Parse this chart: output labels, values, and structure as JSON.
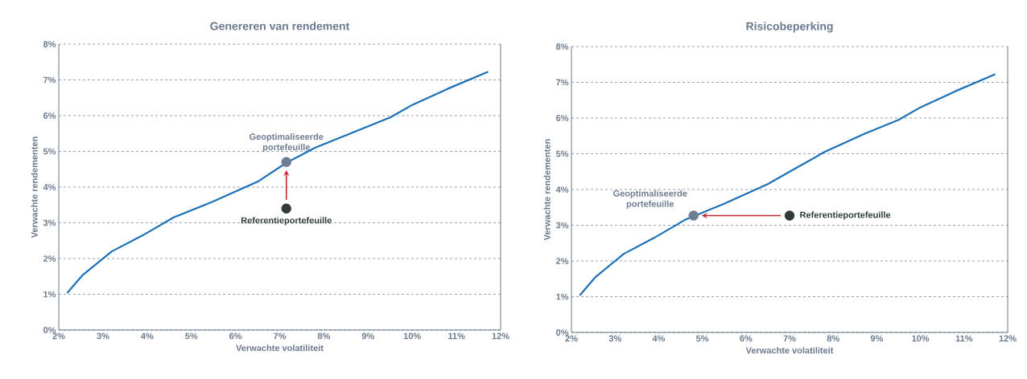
{
  "chart_data": [
    {
      "type": "line",
      "title": "Genereren van rendement",
      "xlabel": "Verwachte volatiliteit",
      "ylabel": "Verwachte rendementen",
      "xlim": [
        2,
        12
      ],
      "ylim": [
        0,
        8
      ],
      "grid": "y",
      "xticks": [
        {
          "value": 2,
          "label": "2%"
        },
        {
          "value": 3,
          "label": "3%"
        },
        {
          "value": 4,
          "label": "4%"
        },
        {
          "value": 5,
          "label": "5%"
        },
        {
          "value": 6,
          "label": "6%"
        },
        {
          "value": 7,
          "label": "7%"
        },
        {
          "value": 8,
          "label": "8%"
        },
        {
          "value": 9,
          "label": "9%"
        },
        {
          "value": 10,
          "label": "10%"
        },
        {
          "value": 11,
          "label": "11%"
        },
        {
          "value": 12,
          "label": "12%"
        }
      ],
      "yticks": [
        {
          "value": 0,
          "label": "0%"
        },
        {
          "value": 1,
          "label": "1%"
        },
        {
          "value": 2,
          "label": "2%"
        },
        {
          "value": 3,
          "label": "3%"
        },
        {
          "value": 4,
          "label": "4%"
        },
        {
          "value": 5,
          "label": "5%"
        },
        {
          "value": 6,
          "label": "6%"
        },
        {
          "value": 7,
          "label": "7%"
        },
        {
          "value": 8,
          "label": "8%"
        }
      ],
      "series": [
        {
          "type": "line",
          "marker": "none",
          "color": "#1b70b8",
          "x": [
            2.2,
            2.55,
            3.2,
            3.9,
            4.6,
            5.5,
            6.5,
            7.15,
            7.8,
            8.7,
            9.5,
            10.0,
            10.8,
            11.7
          ],
          "values": [
            1.05,
            1.55,
            2.2,
            2.65,
            3.15,
            3.6,
            4.15,
            4.68,
            5.1,
            5.55,
            5.95,
            6.3,
            6.75,
            7.22
          ]
        },
        {
          "type": "scatter",
          "marker": "circle",
          "name": "Geoptimaliseerde portefeuille",
          "color": "#6e7d91",
          "x": [
            7.15
          ],
          "values": [
            4.7
          ]
        },
        {
          "type": "scatter",
          "marker": "circle",
          "name": "Referentieportefeuille",
          "color": "#2e3b3a",
          "x": [
            7.15
          ],
          "values": [
            3.4
          ]
        }
      ]
    },
    {
      "type": "line",
      "title": "Risicobeperking",
      "xlabel": "Verwachte volatiliteit",
      "ylabel": "Verwachte rendementen",
      "xlim": [
        2,
        12
      ],
      "ylim": [
        0,
        8
      ],
      "grid": "y",
      "xticks": [
        {
          "value": 2,
          "label": "2%"
        },
        {
          "value": 3,
          "label": "3%"
        },
        {
          "value": 4,
          "label": "4%"
        },
        {
          "value": 5,
          "label": "5%"
        },
        {
          "value": 6,
          "label": "6%"
        },
        {
          "value": 7,
          "label": "7%"
        },
        {
          "value": 8,
          "label": "8%"
        },
        {
          "value": 9,
          "label": "9%"
        },
        {
          "value": 10,
          "label": "10%"
        },
        {
          "value": 11,
          "label": "11%"
        },
        {
          "value": 12,
          "label": "12%"
        }
      ],
      "yticks": [
        {
          "value": 0,
          "label": "0%"
        },
        {
          "value": 1,
          "label": "1%"
        },
        {
          "value": 2,
          "label": "2%"
        },
        {
          "value": 3,
          "label": "3%"
        },
        {
          "value": 4,
          "label": "4%"
        },
        {
          "value": 5,
          "label": "5%"
        },
        {
          "value": 6,
          "label": "6%"
        },
        {
          "value": 7,
          "label": "7%"
        },
        {
          "value": 8,
          "label": "8%"
        }
      ],
      "series": [
        {
          "type": "line",
          "marker": "none",
          "color": "#1b70b8",
          "x": [
            2.2,
            2.55,
            3.2,
            3.9,
            4.6,
            5.5,
            6.5,
            7.15,
            7.8,
            8.7,
            9.5,
            10.0,
            10.8,
            11.7
          ],
          "values": [
            1.05,
            1.55,
            2.2,
            2.65,
            3.15,
            3.6,
            4.15,
            4.6,
            5.05,
            5.55,
            5.95,
            6.3,
            6.75,
            7.22
          ]
        },
        {
          "type": "scatter",
          "marker": "circle",
          "name": "Geoptimaliseerde portefeuille",
          "color": "#6e7d91",
          "x": [
            4.8
          ],
          "values": [
            3.27
          ]
        },
        {
          "type": "scatter",
          "marker": "circle",
          "name": "Referentieportefeuille",
          "color": "#2e3b3a",
          "x": [
            7.0
          ],
          "values": [
            3.27
          ]
        }
      ]
    }
  ]
}
